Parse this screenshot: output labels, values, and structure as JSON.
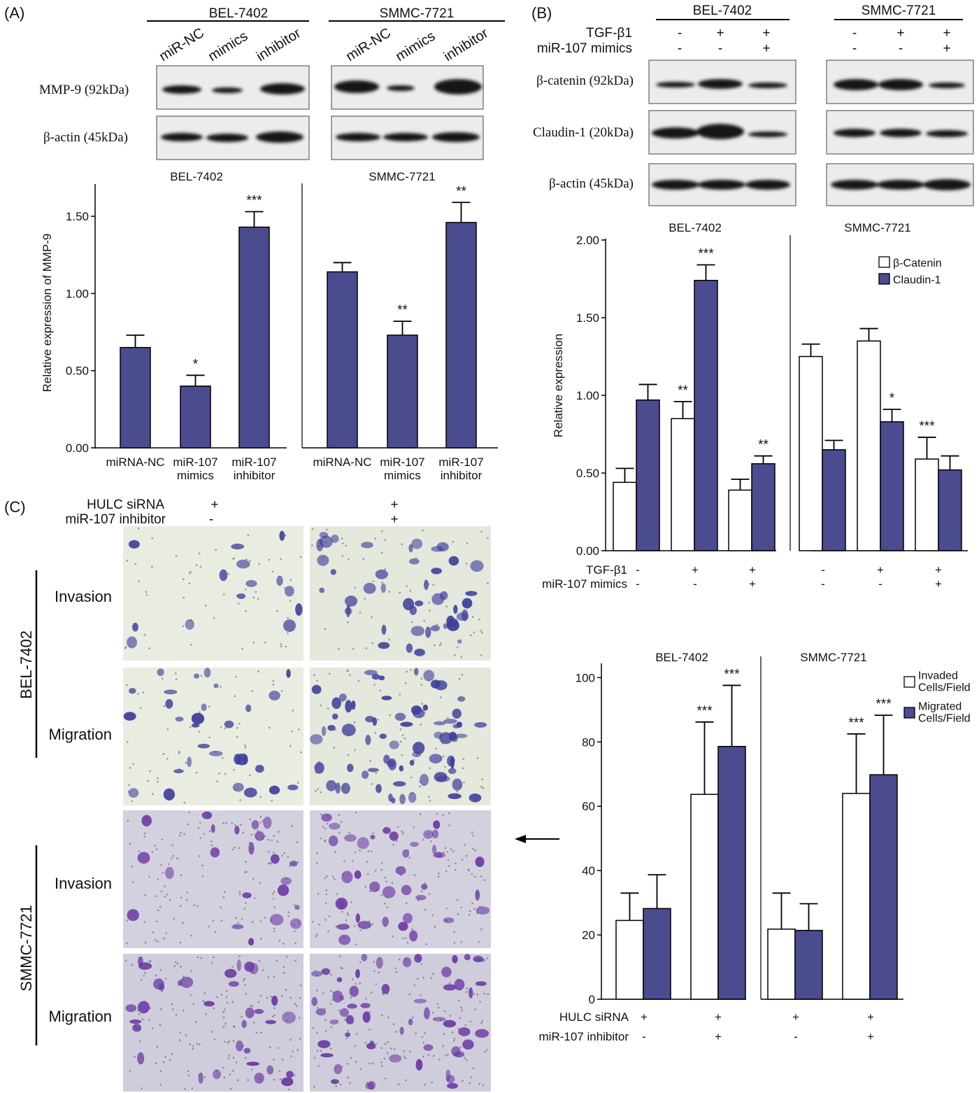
{
  "colors": {
    "filled": "#4b4b8f",
    "open": "#ffffff",
    "axis": "#000000",
    "blot_bg": "#ececec",
    "band": "#161616",
    "plate_light": "#e9ece0",
    "plate_purple": "#d4d1df",
    "cell_blue": "#3d3f9a",
    "cell_purple": "#6b3aa3"
  },
  "panel_a": {
    "label": "(A)",
    "blot": {
      "groups": [
        "BEL-7402",
        "SMMC-7721"
      ],
      "lanes": [
        "miR-NC",
        "mimics",
        "inhibitor"
      ],
      "rows": [
        "MMP-9 (92kDa)",
        "β-actin (45kDa)"
      ]
    }
  },
  "panel_b": {
    "label": "(B)",
    "blot": {
      "groups": [
        "BEL-7402",
        "SMMC-7721"
      ],
      "conditions": [
        {
          "label": "TGF-β1",
          "values": [
            "-",
            "+",
            "+"
          ]
        },
        {
          "label": "miR-107 mimics",
          "values": [
            "-",
            "-",
            "+"
          ]
        }
      ],
      "rows": [
        "β-catenin (92kDa)",
        "Claudin-1 (20kDa)",
        "β-actin (45kDa)"
      ]
    }
  },
  "panel_c": {
    "label": "(C)",
    "conditions": [
      {
        "label": "HULC siRNA",
        "values": [
          "+",
          "+"
        ]
      },
      {
        "label": "miR-107 inhibitor",
        "values": [
          "-",
          "+"
        ]
      }
    ],
    "cell_lines": [
      "BEL-7402",
      "SMMC-7721"
    ],
    "assays": [
      "Invasion",
      "Migration"
    ]
  },
  "chart_data": [
    {
      "id": "mmp9",
      "type": "bar",
      "ylabel": "Relative expression of MMP-9",
      "ylim": [
        0,
        1.7
      ],
      "yticks": [
        "0.00",
        "0.50",
        "1.00",
        "1.50"
      ],
      "groups": [
        {
          "title": "BEL-7402",
          "categories": [
            [
              "miRNA-NC"
            ],
            [
              "miR-107",
              "mimics"
            ],
            [
              "miR-107",
              "inhibitor"
            ]
          ],
          "values": [
            0.65,
            0.4,
            1.43
          ],
          "errors": [
            0.08,
            0.07,
            0.1
          ],
          "stars": [
            "",
            "*",
            "***"
          ]
        },
        {
          "title": "SMMC-7721",
          "categories": [
            [
              "miRNA-NC"
            ],
            [
              "miR-107",
              "mimics"
            ],
            [
              "miR-107",
              "inhibitor"
            ]
          ],
          "values": [
            1.14,
            0.73,
            1.46
          ],
          "errors": [
            0.06,
            0.09,
            0.13
          ],
          "stars": [
            "",
            "**",
            "**"
          ]
        }
      ]
    },
    {
      "id": "emt",
      "type": "bar",
      "ylabel": "Relative expression",
      "ylim": [
        0,
        2.0
      ],
      "yticks": [
        "0.00",
        "0.50",
        "1.00",
        "1.50",
        "2.00"
      ],
      "legend": [
        "β-Catenin",
        "Claudin-1"
      ],
      "conditions": [
        {
          "label": "TGF-β1",
          "values": [
            "-",
            "+",
            "+",
            "-",
            "+",
            "+"
          ]
        },
        {
          "label": "miR-107 mimics",
          "values": [
            "-",
            "-",
            "+",
            "-",
            "-",
            "+"
          ]
        }
      ],
      "groups": [
        {
          "title": "BEL-7402",
          "series": [
            {
              "name": "β-Catenin",
              "values": [
                0.44,
                0.85,
                0.39
              ],
              "errors": [
                0.09,
                0.11,
                0.07
              ],
              "stars": [
                "",
                "**",
                ""
              ]
            },
            {
              "name": "Claudin-1",
              "values": [
                0.97,
                1.74,
                0.56
              ],
              "errors": [
                0.1,
                0.1,
                0.05
              ],
              "stars": [
                "",
                "***",
                "**"
              ]
            }
          ]
        },
        {
          "title": "SMMC-7721",
          "series": [
            {
              "name": "β-Catenin",
              "values": [
                1.25,
                1.35,
                0.59
              ],
              "errors": [
                0.08,
                0.08,
                0.14
              ],
              "stars": [
                "",
                "",
                "***"
              ]
            },
            {
              "name": "Claudin-1",
              "values": [
                0.65,
                0.83,
                0.52
              ],
              "errors": [
                0.06,
                0.08,
                0.09
              ],
              "stars": [
                "",
                "*",
                ""
              ]
            }
          ]
        }
      ]
    },
    {
      "id": "transwell",
      "type": "bar",
      "ylim": [
        0,
        104
      ],
      "yticks": [
        "0",
        "20",
        "40",
        "60",
        "80",
        "100"
      ],
      "legend": [
        [
          "Invaded",
          "Cells/Field"
        ],
        [
          "Migrated",
          "Cells/Field"
        ]
      ],
      "conditions": [
        {
          "label": "HULC siRNA",
          "values": [
            "+",
            "+",
            "+",
            "+"
          ]
        },
        {
          "label": "miR-107 inhibitor",
          "values": [
            "-",
            "+",
            "-",
            "+"
          ]
        }
      ],
      "groups": [
        {
          "title": "BEL-7402",
          "series": [
            {
              "name": "Invaded Cells/Field",
              "values": [
                24.5,
                63.7
              ],
              "errors": [
                8.5,
                22.5
              ],
              "stars": [
                "",
                "***"
              ]
            },
            {
              "name": "Migrated Cells/Field",
              "values": [
                28.2,
                78.6
              ],
              "errors": [
                10.5,
                19.0
              ],
              "stars": [
                "",
                "***"
              ]
            }
          ]
        },
        {
          "title": "SMMC-7721",
          "series": [
            {
              "name": "Invaded Cells/Field",
              "values": [
                21.8,
                64.0
              ],
              "errors": [
                11.2,
                18.5
              ],
              "stars": [
                "",
                "***"
              ]
            },
            {
              "name": "Migrated Cells/Field",
              "values": [
                21.4,
                69.8
              ],
              "errors": [
                8.3,
                18.5
              ],
              "stars": [
                "",
                "***"
              ]
            }
          ]
        }
      ]
    }
  ]
}
